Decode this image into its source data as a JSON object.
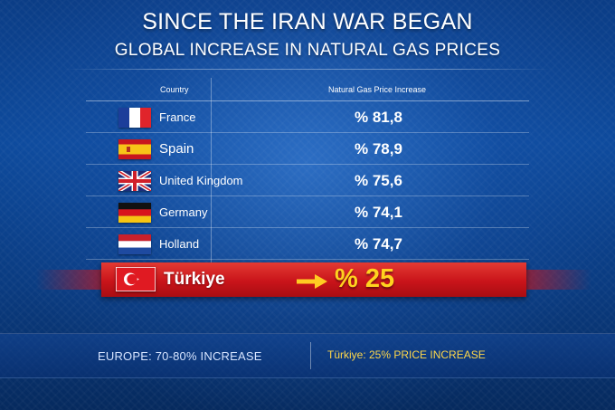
{
  "header": {
    "title": "SINCE THE IRAN WAR BEGAN",
    "subtitle": "GLOBAL INCREASE IN NATURAL GAS PRICES"
  },
  "table": {
    "columns": [
      "Country",
      "Natural Gas Price Increase"
    ],
    "rows": [
      {
        "country": "France",
        "value": "% 81,8",
        "flag": "flag-france"
      },
      {
        "country": "Spain",
        "value": "% 78,9",
        "flag": "flag-spain"
      },
      {
        "country": "United Kingdom",
        "value": "% 75,6",
        "flag": "flag-united-kingdom"
      },
      {
        "country": "Germany",
        "value": "% 74,1",
        "flag": "flag-germany"
      },
      {
        "country": "Holland",
        "value": "% 74,7",
        "flag": "flag-netherlands"
      }
    ],
    "highlight": {
      "country": "Türkiye",
      "value": "% 25",
      "flag": "flag-turkiye",
      "icon": "arrow-right-icon"
    }
  },
  "footer": {
    "left": "EUROPE: 70-80% INCREASE",
    "right": "Türkiye: 25% PRICE INCREASE"
  },
  "colors": {
    "background": "#0b3d86",
    "highlight_bar": "#c9141a",
    "highlight_value": "#ffd21f",
    "footer_right_text": "#ffd84a"
  }
}
